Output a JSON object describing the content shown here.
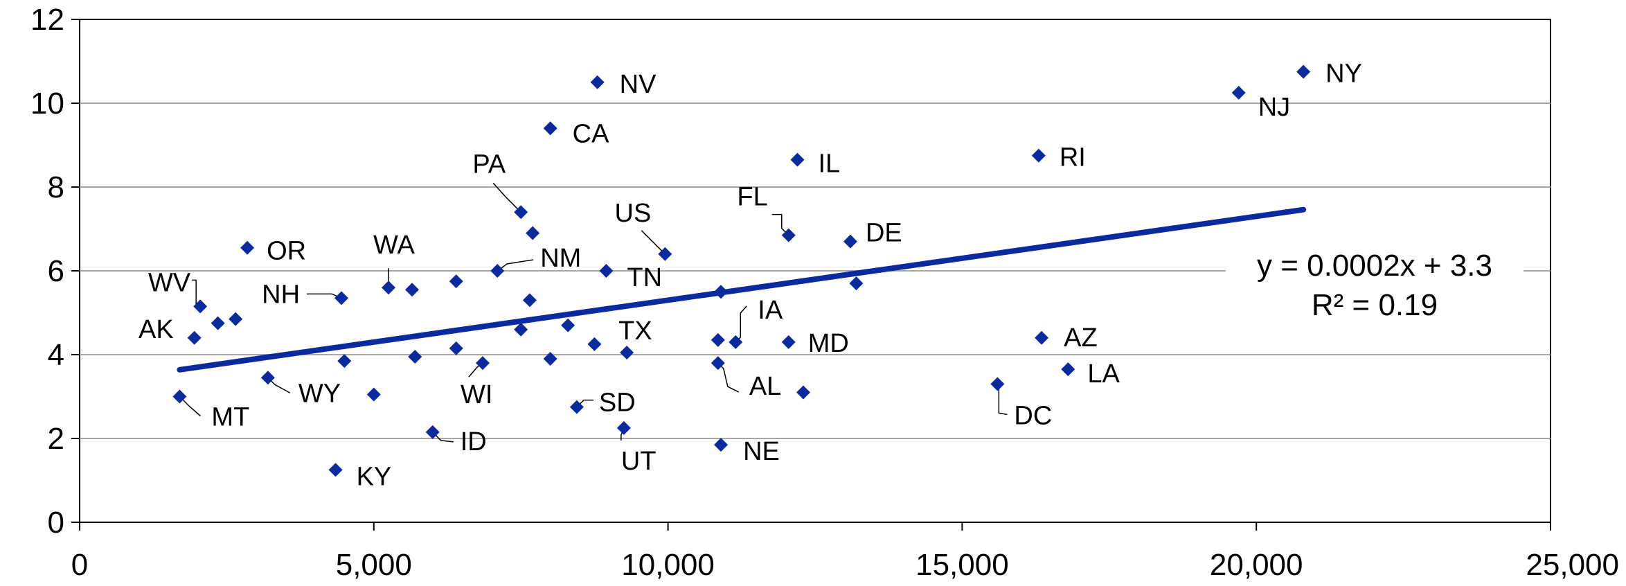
{
  "chart_data": {
    "type": "scatter",
    "title": "",
    "xlabel": "",
    "ylabel": "",
    "xlim": [
      0,
      25000
    ],
    "ylim": [
      0,
      12
    ],
    "x_ticks": [
      "0",
      "5,000",
      "10,000",
      "15,000",
      "20,000",
      "25,000"
    ],
    "y_ticks": [
      "0",
      "2",
      "4",
      "6",
      "8",
      "10",
      "12"
    ],
    "grid": "horizontal",
    "legend": "none",
    "colors": {
      "marker": "#0a2a9e",
      "trendline": "#0a2a9e",
      "highlight_label": "#ff0000",
      "grid": "#a6a6a6",
      "axis": "#000000"
    },
    "trendline": {
      "slope": 0.0002,
      "intercept": 3.3,
      "x_range": [
        1700,
        20800
      ],
      "equation": "y = 0.0002x + 3.3",
      "r2": "R² = 0.19"
    },
    "points": [
      {
        "x": 20800,
        "y": 10.75,
        "label": "NY"
      },
      {
        "x": 19700,
        "y": 10.25,
        "label": "NJ"
      },
      {
        "x": 8800,
        "y": 10.5,
        "label": "NV"
      },
      {
        "x": 8000,
        "y": 9.4,
        "label": "CA"
      },
      {
        "x": 12200,
        "y": 8.65,
        "label": "IL"
      },
      {
        "x": 16300,
        "y": 8.75,
        "label": "RI"
      },
      {
        "x": 7500,
        "y": 7.4,
        "label": "PA"
      },
      {
        "x": 12050,
        "y": 6.85,
        "label": "FL"
      },
      {
        "x": 9950,
        "y": 6.4,
        "label": "US",
        "highlight": true
      },
      {
        "x": 13100,
        "y": 6.7,
        "label": "DE"
      },
      {
        "x": 2850,
        "y": 6.55,
        "label": "OR"
      },
      {
        "x": 7700,
        "y": 6.9,
        "label": ""
      },
      {
        "x": 7100,
        "y": 6.0,
        "label": "NM"
      },
      {
        "x": 8950,
        "y": 6.0,
        "label": "TN"
      },
      {
        "x": 5250,
        "y": 5.6,
        "label": "WA"
      },
      {
        "x": 5650,
        "y": 5.55,
        "label": ""
      },
      {
        "x": 6400,
        "y": 5.75,
        "label": ""
      },
      {
        "x": 4450,
        "y": 5.35,
        "label": "NH"
      },
      {
        "x": 2050,
        "y": 5.15,
        "label": "WV"
      },
      {
        "x": 2350,
        "y": 4.75,
        "label": ""
      },
      {
        "x": 2650,
        "y": 4.85,
        "label": ""
      },
      {
        "x": 1950,
        "y": 4.4,
        "label": "AK"
      },
      {
        "x": 7650,
        "y": 5.3,
        "label": ""
      },
      {
        "x": 10900,
        "y": 5.5,
        "label": ""
      },
      {
        "x": 13200,
        "y": 5.7,
        "label": ""
      },
      {
        "x": 11150,
        "y": 4.3,
        "label": "IA"
      },
      {
        "x": 7500,
        "y": 4.6,
        "label": ""
      },
      {
        "x": 8300,
        "y": 4.7,
        "label": ""
      },
      {
        "x": 8750,
        "y": 4.25,
        "label": ""
      },
      {
        "x": 9300,
        "y": 4.05,
        "label": "TX"
      },
      {
        "x": 10850,
        "y": 4.35,
        "label": ""
      },
      {
        "x": 12050,
        "y": 4.3,
        "label": "MD"
      },
      {
        "x": 16350,
        "y": 4.4,
        "label": "AZ"
      },
      {
        "x": 10850,
        "y": 3.8,
        "label": "AL"
      },
      {
        "x": 16800,
        "y": 3.65,
        "label": "LA"
      },
      {
        "x": 4500,
        "y": 3.85,
        "label": ""
      },
      {
        "x": 5700,
        "y": 3.95,
        "label": ""
      },
      {
        "x": 6400,
        "y": 4.15,
        "label": ""
      },
      {
        "x": 6850,
        "y": 3.8,
        "label": "WI"
      },
      {
        "x": 8000,
        "y": 3.9,
        "label": ""
      },
      {
        "x": 3200,
        "y": 3.45,
        "label": "WY"
      },
      {
        "x": 5000,
        "y": 3.05,
        "label": ""
      },
      {
        "x": 12300,
        "y": 3.1,
        "label": ""
      },
      {
        "x": 15600,
        "y": 3.3,
        "label": "DC"
      },
      {
        "x": 1700,
        "y": 3.0,
        "label": "MT"
      },
      {
        "x": 8450,
        "y": 2.75,
        "label": "SD"
      },
      {
        "x": 9250,
        "y": 2.25,
        "label": "UT"
      },
      {
        "x": 6000,
        "y": 2.15,
        "label": "ID"
      },
      {
        "x": 10900,
        "y": 1.85,
        "label": "NE"
      },
      {
        "x": 4350,
        "y": 1.25,
        "label": "KY"
      }
    ]
  }
}
